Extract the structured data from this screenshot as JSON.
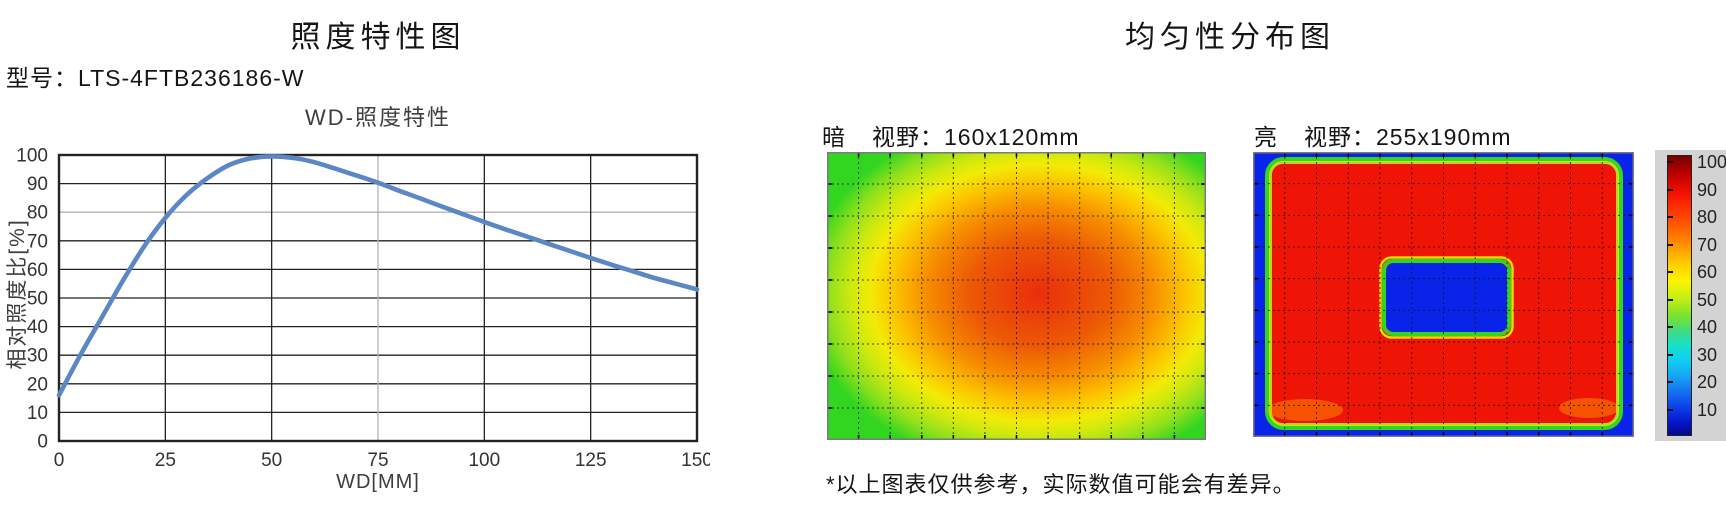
{
  "left_panel": {
    "title": "照度特性图",
    "model_prefix": "型号：",
    "model_value": "LTS-4FTB236186-W"
  },
  "right_panel": {
    "title": "均匀性分布图",
    "note": "*以上图表仅供参考，实际数值可能会有差异。"
  },
  "colors": {
    "curve": "#5b87c5",
    "grid_dark": "#232323",
    "grid_light": "#b3b3b3",
    "heat_red": "#ee1506",
    "heat_blue": "#0a23e8",
    "heat_green": "#32d520",
    "heat_yellow": "#e2ef07",
    "colorbar_bg": "#d3d3d3",
    "text": "#151515"
  },
  "chart_data": [
    {
      "type": "line",
      "title": "WD-照度特性",
      "xlabel": "WD[MM]",
      "ylabel": "相对照度比[%]",
      "xlim": [
        0,
        150
      ],
      "ylim": [
        0,
        100
      ],
      "x_ticks": [
        0,
        25,
        50,
        75,
        100,
        125,
        150
      ],
      "y_ticks": [
        0,
        10,
        20,
        30,
        40,
        50,
        60,
        70,
        80,
        90,
        100
      ],
      "grid": true,
      "legend": "none",
      "light_gridlines": {
        "x": [
          75
        ],
        "y": [
          80
        ]
      },
      "x": [
        0,
        5,
        10,
        15,
        20,
        25,
        30,
        35,
        40,
        45,
        50,
        55,
        60,
        65,
        70,
        75,
        80,
        85,
        90,
        95,
        100,
        105,
        110,
        115,
        120,
        125,
        130,
        135,
        140,
        145,
        150
      ],
      "y": [
        16,
        30,
        43,
        56,
        68,
        78,
        86,
        92,
        96.5,
        98.8,
        99.5,
        99,
        97.5,
        95.2,
        92.8,
        90.3,
        87.5,
        84.8,
        82,
        79.3,
        76.6,
        74,
        71.5,
        69,
        66.5,
        64,
        61.6,
        59.3,
        57,
        55,
        53
      ]
    },
    {
      "type": "heatmap",
      "field_label": "暗",
      "fov_label": "视野：160x120mm",
      "palette": "jet",
      "value_range": [
        0,
        100
      ],
      "grid": {
        "cols": 12,
        "rows": 9
      },
      "pattern": "radial illuminance map: deep red hotspot slightly right of center (~90-95), fading through orange and yellow to green (~40-50) at the corners and edges"
    },
    {
      "type": "heatmap",
      "field_label": "亮",
      "fov_label": "视野：255x190mm",
      "palette": "jet",
      "value_range": [
        0,
        100
      ],
      "grid": {
        "cols": 12,
        "rows": 9
      },
      "pattern": "uniform saturated red field (~95-100) with thin green/yellow transition ring, surrounded by blue (~5-10) border; central blue rounded-rectangle cutout with green outline",
      "colorbar": {
        "ticks": [
          100,
          90,
          80,
          70,
          60,
          50,
          40,
          30,
          20,
          10
        ],
        "range": [
          0,
          100
        ]
      }
    }
  ]
}
